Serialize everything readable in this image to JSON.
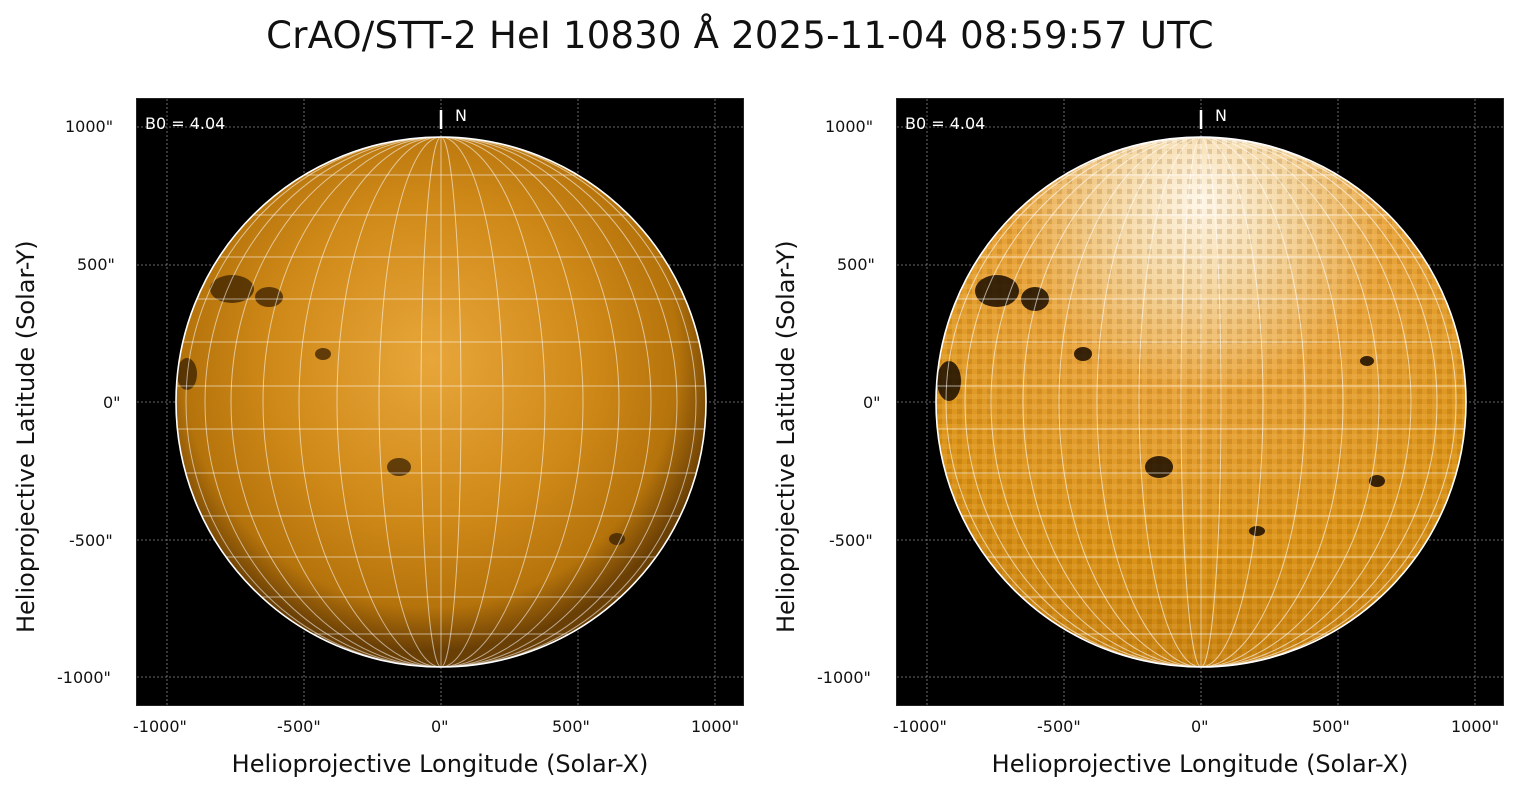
{
  "title": "CrAO/STT-2 HeI 10830 Å 2025-11-04 08:59:57 UTC",
  "panels": [
    {
      "id": "left",
      "b0_label": "B0 = 4.04",
      "north_label": "N",
      "xlabel": "Helioprojective Longitude (Solar-X)",
      "ylabel": "Helioprojective Latitude (Solar-Y)",
      "xticks": [
        "-1000\"",
        "-500\"",
        "0\"",
        "500\"",
        "1000\""
      ],
      "yticks": [
        "1000\"",
        "500\"",
        "0\"",
        "-500\"",
        "-1000\""
      ]
    },
    {
      "id": "right",
      "b0_label": "B0 = 4.04",
      "north_label": "N",
      "xlabel": "Helioprojective Longitude (Solar-X)",
      "ylabel": "Helioprojective Latitude (Solar-Y)",
      "xticks": [
        "-1000\"",
        "-500\"",
        "0\"",
        "500\"",
        "1000\""
      ],
      "yticks": [
        "1000\"",
        "500\"",
        "0\"",
        "-500\"",
        "-1000\""
      ]
    }
  ],
  "colors": {
    "disk_left": "#c77f0c",
    "disk_right": "#e39a18",
    "background": "#000000",
    "grid": "#ffffff"
  }
}
